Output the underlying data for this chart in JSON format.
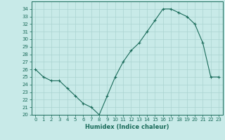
{
  "x": [
    0,
    1,
    2,
    3,
    4,
    5,
    6,
    7,
    8,
    9,
    10,
    11,
    12,
    13,
    14,
    15,
    16,
    17,
    18,
    19,
    20,
    21,
    22,
    23
  ],
  "y": [
    26,
    25,
    24.5,
    24.5,
    23.5,
    22.5,
    21.5,
    21,
    20,
    22.5,
    25,
    27,
    28.5,
    29.5,
    31,
    32.5,
    34,
    34,
    33.5,
    33,
    32,
    29.5,
    25,
    25
  ],
  "line_color": "#1a6b5a",
  "marker": "+",
  "marker_color": "#1a6b5a",
  "bg_color": "#c8eae8",
  "grid_color": "#aad4d0",
  "xlabel": "Humidex (Indice chaleur)",
  "xlabel_fontsize": 6,
  "tick_fontsize": 5,
  "ylim": [
    20,
    35
  ],
  "xlim": [
    -0.5,
    23.5
  ],
  "yticks": [
    20,
    21,
    22,
    23,
    24,
    25,
    26,
    27,
    28,
    29,
    30,
    31,
    32,
    33,
    34
  ],
  "xticks": [
    0,
    1,
    2,
    3,
    4,
    5,
    6,
    7,
    8,
    9,
    10,
    11,
    12,
    13,
    14,
    15,
    16,
    17,
    18,
    19,
    20,
    21,
    22,
    23
  ]
}
